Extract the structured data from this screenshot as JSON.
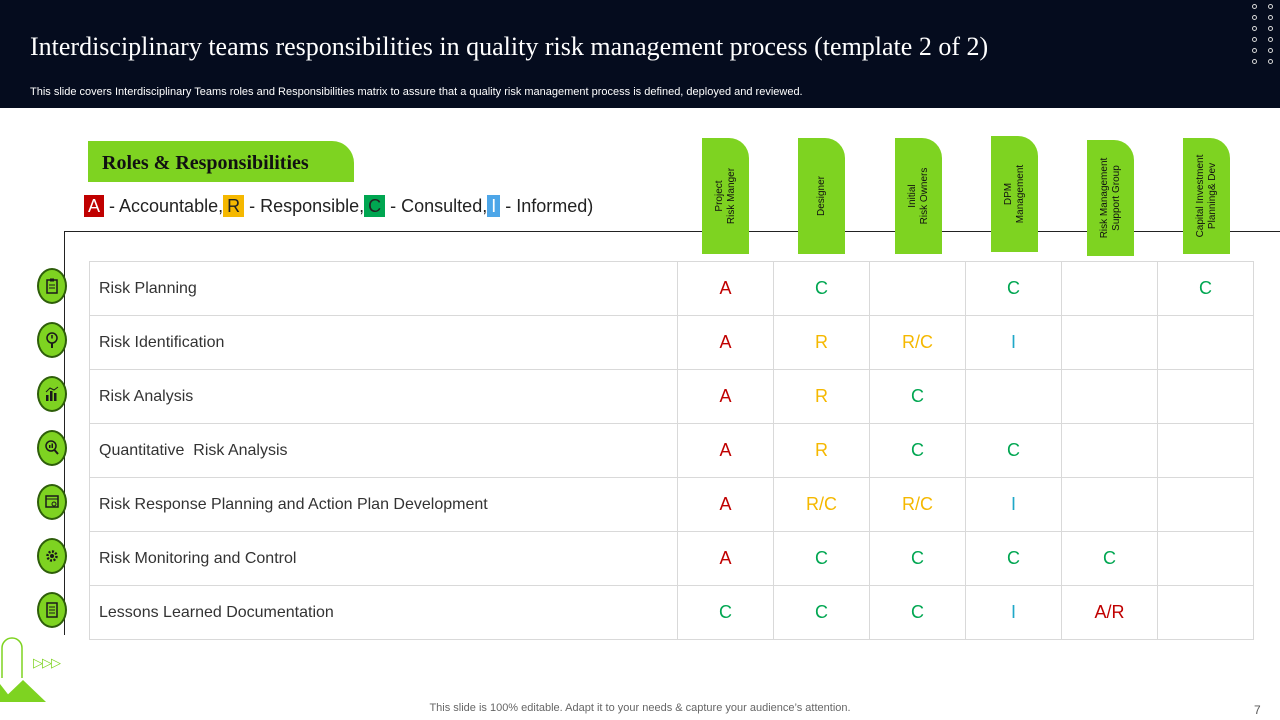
{
  "header": {
    "title": "Interdisciplinary teams responsibilities in quality risk management process (template 2 of 2)",
    "subtitle": "This slide covers Interdisciplinary Teams roles and  Responsibilities matrix to assure that a quality risk management process is defined, deployed and reviewed."
  },
  "roles_heading": "Roles & Responsibilities",
  "legend": {
    "a": "A",
    "a_text": " - Accountable,",
    "r": "R",
    "r_text": " - Responsible,",
    "c": "C",
    "c_text": " - Consulted,",
    "i": "I",
    "i_text": " - Informed)"
  },
  "columns": [
    {
      "label": "Project\nRisk Manger"
    },
    {
      "label": "Designer"
    },
    {
      "label": "Initial\nRisk Owners"
    },
    {
      "label": "DPM\nManagement"
    },
    {
      "label": "Risk Management\nSupport Group"
    },
    {
      "label": "Capital Investment\nPlanning& Dev"
    }
  ],
  "rows": [
    {
      "activity": "Risk Planning",
      "icon": "clipboard-icon",
      "cells": [
        "A",
        "C",
        "",
        "C",
        "",
        "C"
      ]
    },
    {
      "activity": "Risk Identification",
      "icon": "magnifier-alert-icon",
      "cells": [
        "A",
        "R",
        "R/C",
        "I",
        "",
        ""
      ]
    },
    {
      "activity": "Risk Analysis",
      "icon": "chart-analysis-icon",
      "cells": [
        "A",
        "R",
        "C",
        "",
        "",
        ""
      ]
    },
    {
      "activity": "Quantitative  Risk Analysis",
      "icon": "search-chart-icon",
      "cells": [
        "A",
        "R",
        "C",
        "C",
        "",
        ""
      ]
    },
    {
      "activity": "Risk Response Planning and Action Plan Development",
      "icon": "browser-gear-icon",
      "cells": [
        "A",
        "R/C",
        "R/C",
        "I",
        "",
        ""
      ]
    },
    {
      "activity": "Risk Monitoring and Control",
      "icon": "gear-icon",
      "cells": [
        "A",
        "C",
        "C",
        "C",
        "C",
        ""
      ]
    },
    {
      "activity": "Lessons Learned Documentation",
      "icon": "document-icon",
      "cells": [
        "C",
        "C",
        "C",
        "I",
        "A/R",
        ""
      ]
    }
  ],
  "footer": "This slide is 100% editable. Adapt it to your needs & capture your audience’s attention.",
  "page_number": "7",
  "decor_arrows": "▷▷▷",
  "colors": {
    "header_bg": "#050c1e",
    "accent_green": "#7ed321",
    "accountable": "#c00000",
    "responsible": "#f5b800",
    "consulted": "#00a651",
    "informed": "#1fa8c8"
  }
}
